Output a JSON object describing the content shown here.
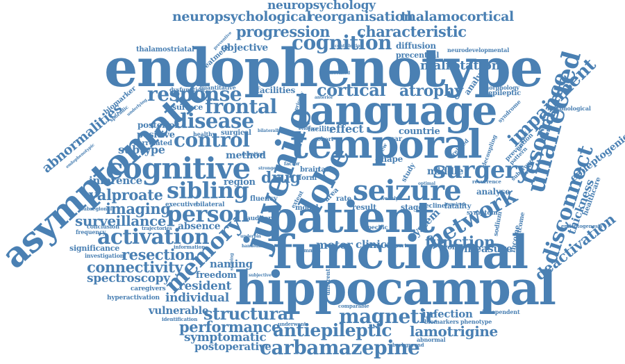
{
  "accent_color": "#4a80b3",
  "words": [
    {
      "id": "endophenotype",
      "text": "endophenotype"
    },
    {
      "id": "functional",
      "text": "functional"
    },
    {
      "id": "hippocampal",
      "text": "hippocampal"
    },
    {
      "id": "patient",
      "text": "patient"
    },
    {
      "id": "language",
      "text": "language"
    },
    {
      "id": "temporal",
      "text": "temporal"
    },
    {
      "id": "asymptomatic",
      "text": "asymptomatic"
    },
    {
      "id": "juvenile",
      "text": "juvenile"
    },
    {
      "id": "cognitive",
      "text": "cognitive"
    },
    {
      "id": "seizure",
      "text": "seizure"
    },
    {
      "id": "lobe",
      "text": "lobe"
    },
    {
      "id": "surgery",
      "text": "surgery"
    },
    {
      "id": "unaffected",
      "text": "unaffected"
    },
    {
      "id": "network",
      "text": "network"
    },
    {
      "id": "disconnect",
      "text": "disconnect"
    },
    {
      "id": "carbamazepine",
      "text": "carbamazepine"
    },
    {
      "id": "antiepileptic",
      "text": "antiepileptic"
    },
    {
      "id": "activation",
      "text": "activation"
    },
    {
      "id": "person",
      "text": "person"
    },
    {
      "id": "sibling",
      "text": "sibling"
    },
    {
      "id": "memory",
      "text": "memory"
    },
    {
      "id": "cognition",
      "text": "cognition"
    },
    {
      "id": "progression",
      "text": "progression"
    },
    {
      "id": "characteristic",
      "text": "characteristic"
    },
    {
      "id": "neuropsychological",
      "text": "neuropsychological"
    },
    {
      "id": "reorganisation",
      "text": "reorganisation"
    },
    {
      "id": "thalamocortical",
      "text": "thalamocortical"
    },
    {
      "id": "neuropsychology",
      "text": "neuropsychology"
    },
    {
      "id": "magnetic",
      "text": "magnetic"
    },
    {
      "id": "resonance",
      "text": "resonance"
    },
    {
      "id": "impairment",
      "text": "impairment"
    },
    {
      "id": "disease",
      "text": "disease"
    },
    {
      "id": "frontal",
      "text": "frontal"
    },
    {
      "id": "control",
      "text": "control"
    },
    {
      "id": "response",
      "text": "response"
    },
    {
      "id": "cortical",
      "text": "cortical"
    },
    {
      "id": "atrophy",
      "text": "atrophy"
    },
    {
      "id": "malrotation",
      "text": "malrotation"
    },
    {
      "id": "valproate",
      "text": "valproate"
    },
    {
      "id": "imaging",
      "text": "imaging"
    },
    {
      "id": "surveillance",
      "text": "surveillance"
    },
    {
      "id": "resection",
      "text": "resection"
    },
    {
      "id": "connectivity",
      "text": "connectivity"
    },
    {
      "id": "spectroscopy",
      "text": "spectroscopy"
    },
    {
      "id": "structural",
      "text": "structural"
    },
    {
      "id": "performance",
      "text": "performance"
    },
    {
      "id": "symptomatic",
      "text": "symptomatic"
    },
    {
      "id": "postoperative",
      "text": "postoperative"
    },
    {
      "id": "lamotrigine",
      "text": "lamotrigine"
    },
    {
      "id": "infection",
      "text": "infection"
    },
    {
      "id": "deactivation",
      "text": "deactivation"
    },
    {
      "id": "thickness",
      "text": "thickness"
    },
    {
      "id": "epileptogenic",
      "text": "epileptogenic"
    },
    {
      "id": "function",
      "text": "function"
    },
    {
      "id": "measure",
      "text": "measure"
    },
    {
      "id": "drug",
      "text": "drug"
    },
    {
      "id": "motor",
      "text": "motor"
    },
    {
      "id": "clinical",
      "text": "clinical"
    },
    {
      "id": "abnormalities",
      "text": "abnormalities"
    },
    {
      "id": "subtype",
      "text": "subtype"
    },
    {
      "id": "inference",
      "text": "inference"
    },
    {
      "id": "method",
      "text": "method"
    },
    {
      "id": "region",
      "text": "region"
    },
    {
      "id": "naming",
      "text": "naming"
    },
    {
      "id": "freedom",
      "text": "freedom"
    },
    {
      "id": "resident",
      "text": "resident"
    },
    {
      "id": "individual",
      "text": "individual"
    },
    {
      "id": "vulnerable",
      "text": "vulnerable"
    },
    {
      "id": "absence",
      "text": "absence"
    },
    {
      "id": "objective",
      "text": "objective"
    },
    {
      "id": "thalamostriatal",
      "text": "thalamostriatal"
    },
    {
      "id": "diffusion",
      "text": "diffusion"
    },
    {
      "id": "precentral",
      "text": "precentral"
    },
    {
      "id": "neurodevelopmental",
      "text": "neurodevelopmental"
    },
    {
      "id": "effect",
      "text": "effect"
    },
    {
      "id": "countrie",
      "text": "countrie"
    },
    {
      "id": "system",
      "text": "system"
    },
    {
      "id": "middle",
      "text": "middle"
    },
    {
      "id": "analyse",
      "text": "analyse"
    },
    {
      "id": "shape",
      "text": "shape"
    },
    {
      "id": "stage",
      "text": "stage"
    },
    {
      "id": "result",
      "text": "result"
    },
    {
      "id": "decline",
      "text": "decline"
    },
    {
      "id": "fatality",
      "text": "fatality"
    },
    {
      "id": "symptom",
      "text": "symptom"
    },
    {
      "id": "facilities",
      "text": "facilities"
    },
    {
      "id": "positive",
      "text": "positive"
    },
    {
      "id": "posterior",
      "text": "posterior"
    },
    {
      "id": "correlated",
      "text": "correlated"
    },
    {
      "id": "surface",
      "text": "surface"
    },
    {
      "id": "healthy",
      "text": "healthy"
    },
    {
      "id": "surgical",
      "text": "surgical"
    },
    {
      "id": "dysfunction",
      "text": "dysfunction"
    },
    {
      "id": "quantitative",
      "text": "quantitative"
    },
    {
      "id": "biomarker",
      "text": "biomarker"
    },
    {
      "id": "treatment",
      "text": "treatment"
    },
    {
      "id": "analysis",
      "text": "analysis"
    },
    {
      "id": "morphology",
      "text": "morphology"
    },
    {
      "id": "epileptic",
      "text": "epileptic"
    },
    {
      "id": "syndrome",
      "text": "syndrome"
    },
    {
      "id": "morphological",
      "text": "morphological"
    },
    {
      "id": "prevention",
      "text": "prevention"
    },
    {
      "id": "healthcare",
      "text": "healthcare"
    },
    {
      "id": "epileptogenesis",
      "text": "epileptogenesis"
    },
    {
      "id": "executive",
      "text": "executive"
    },
    {
      "id": "bilateral",
      "text": "bilateral"
    },
    {
      "id": "fluency",
      "text": "fluency"
    },
    {
      "id": "subregional",
      "text": "subregional"
    },
    {
      "id": "frequency",
      "text": "frequency"
    },
    {
      "id": "conclusion",
      "text": "conclusion"
    },
    {
      "id": "trajectories",
      "text": "trajectories"
    },
    {
      "id": "significance",
      "text": "significance"
    },
    {
      "id": "investigation",
      "text": "investigation"
    },
    {
      "id": "information",
      "text": "information"
    },
    {
      "id": "caregivers",
      "text": "caregivers"
    },
    {
      "id": "hyperactivation",
      "text": "hyperactivation"
    },
    {
      "id": "identification",
      "text": "identification"
    },
    {
      "id": "auditory",
      "text": "auditory"
    },
    {
      "id": "subjective",
      "text": "subjective"
    },
    {
      "id": "different",
      "text": "different"
    },
    {
      "id": "underwent",
      "text": "underwent"
    },
    {
      "id": "comparable",
      "text": "comparable"
    },
    {
      "id": "abnormal",
      "text": "abnormal"
    },
    {
      "id": "background",
      "text": "background"
    },
    {
      "id": "biomarkers",
      "text": "biomarkers"
    },
    {
      "id": "phenotype",
      "text": "phenotype"
    },
    {
      "id": "independent",
      "text": "independent"
    },
    {
      "id": "worker",
      "text": "worker"
    },
    {
      "id": "income",
      "text": "income"
    },
    {
      "id": "outcome",
      "text": "outcome"
    },
    {
      "id": "sodium",
      "text": "sodium"
    },
    {
      "id": "specific",
      "text": "specific"
    },
    {
      "id": "model",
      "text": "model"
    },
    {
      "id": "rate",
      "text": "rate"
    },
    {
      "id": "area",
      "text": "area"
    },
    {
      "id": "brain",
      "text": "brain"
    },
    {
      "id": "task",
      "text": "task"
    },
    {
      "id": "form",
      "text": "form"
    },
    {
      "id": "sar",
      "text": "sar"
    },
    {
      "id": "cohort",
      "text": "cohort"
    },
    {
      "id": "facility",
      "text": "facility"
    },
    {
      "id": "study",
      "text": "study"
    },
    {
      "id": "recurrence",
      "text": "recurrence"
    },
    {
      "id": "pattern",
      "text": "pattern"
    },
    {
      "id": "related",
      "text": "related"
    },
    {
      "id": "decoupling",
      "text": "decoupling"
    },
    {
      "id": "subgroup",
      "text": "subgroup"
    },
    {
      "id": "extent",
      "text": "extent"
    },
    {
      "id": "review",
      "text": "review"
    },
    {
      "id": "weekly",
      "text": "weekly"
    },
    {
      "id": "associated",
      "text": "associated"
    },
    {
      "id": "contribution",
      "text": "contribution"
    },
    {
      "id": "preventive",
      "text": "preventive"
    },
    {
      "id": "endophenotypic",
      "text": "endophenotypic"
    },
    {
      "id": "sporadic",
      "text": "sporadic"
    },
    {
      "id": "underlying",
      "text": "underlying"
    },
    {
      "id": "optimal",
      "text": "optimal"
    },
    {
      "id": "monitor",
      "text": "monitor"
    },
    {
      "id": "priority",
      "text": "priority"
    },
    {
      "id": "duration",
      "text": "duration"
    },
    {
      "id": "evidence",
      "text": "evidence"
    },
    {
      "id": "bilaterally",
      "text": "bilaterally"
    },
    {
      "id": "handedness",
      "text": "handedness"
    },
    {
      "id": "scoping",
      "text": "scoping"
    },
    {
      "id": "common",
      "text": "common"
    },
    {
      "id": "cortex",
      "text": "cortex"
    },
    {
      "id": "impaired",
      "text": "impaired"
    },
    {
      "id": "strongest",
      "text": "strongest"
    },
    {
      "id": "underpin",
      "text": "underpin"
    },
    {
      "id": "anterior",
      "text": "anterior"
    },
    {
      "id": "factor",
      "text": "factor"
    }
  ]
}
